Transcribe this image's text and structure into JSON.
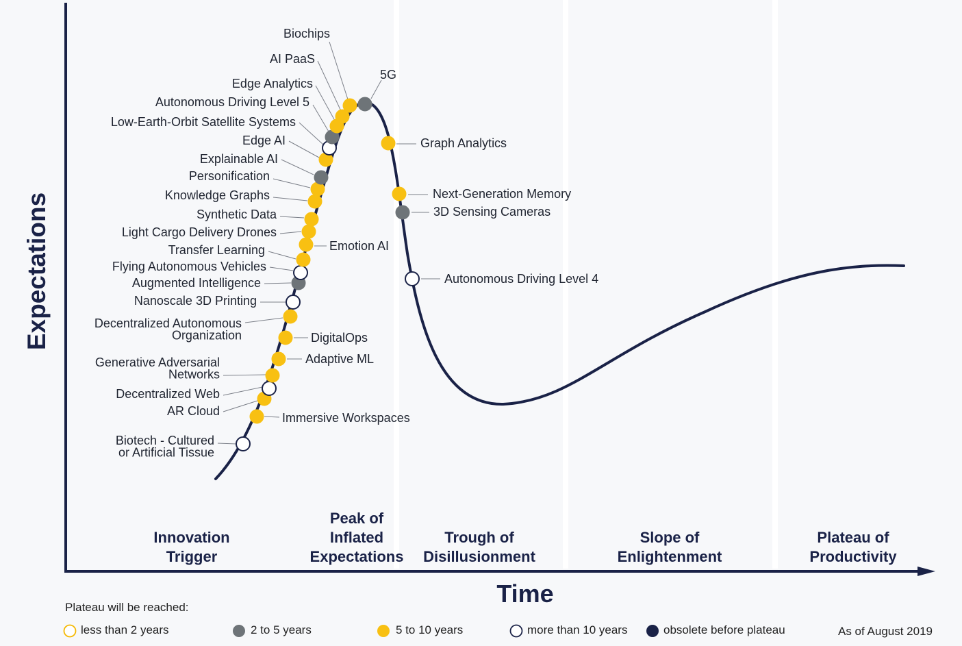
{
  "chart_data": {
    "type": "scatter",
    "title": "",
    "xlabel": "Time",
    "ylabel": "Expectations",
    "grid": false,
    "legend_placement": "bottom",
    "phases": [
      {
        "lines": [
          "Innovation",
          "Trigger"
        ]
      },
      {
        "lines": [
          "Peak of",
          "Inflated",
          "Expectations"
        ]
      },
      {
        "lines": [
          "Trough of",
          "Disillusionment"
        ]
      },
      {
        "lines": [
          "Slope of",
          "Enlightenment"
        ]
      },
      {
        "lines": [
          "Plateau of",
          "Productivity"
        ]
      }
    ],
    "categories": {
      "lt2": {
        "label": "less than 2 years",
        "fill": "#ffffff",
        "stroke": "#f5b800"
      },
      "2to5": {
        "label": "2 to 5 years",
        "fill": "#6e7478",
        "stroke": "#6e7478"
      },
      "5to10": {
        "label": "5 to 10 years",
        "fill": "#f8c012",
        "stroke": "#f8c012"
      },
      "gt10": {
        "label": "more than 10 years",
        "fill": "#ffffff",
        "stroke": "#1a2247"
      },
      "obs": {
        "label": "obsolete before plateau",
        "fill": "#1a2247",
        "stroke": "#1a2247"
      }
    },
    "legend_order": [
      "lt2",
      "2to5",
      "5to10",
      "gt10",
      "obs"
    ],
    "technologies": [
      {
        "name": "Biotech - Cultured or Artificial Tissue",
        "lines": [
          "Biotech - Cultured",
          "or Artificial Tissue"
        ],
        "category": "gt10",
        "phase": "Innovation Trigger"
      },
      {
        "name": "Immersive Workspaces",
        "lines": [
          "Immersive Workspaces"
        ],
        "category": "5to10",
        "phase": "Innovation Trigger"
      },
      {
        "name": "AR Cloud",
        "lines": [
          "AR Cloud"
        ],
        "category": "5to10",
        "phase": "Innovation Trigger"
      },
      {
        "name": "Decentralized Web",
        "lines": [
          "Decentralized Web"
        ],
        "category": "gt10",
        "phase": "Innovation Trigger"
      },
      {
        "name": "Generative Adversarial Networks",
        "lines": [
          "Generative Adversarial",
          "Networks"
        ],
        "category": "5to10",
        "phase": "Innovation Trigger"
      },
      {
        "name": "Adaptive ML",
        "lines": [
          "Adaptive ML"
        ],
        "category": "5to10",
        "phase": "Innovation Trigger"
      },
      {
        "name": "DigitalOps",
        "lines": [
          "DigitalOps"
        ],
        "category": "5to10",
        "phase": "Innovation Trigger"
      },
      {
        "name": "Decentralized Autonomous Organization",
        "lines": [
          "Decentralized Autonomous",
          "Organization"
        ],
        "category": "5to10",
        "phase": "Innovation Trigger"
      },
      {
        "name": "Nanoscale 3D Printing",
        "lines": [
          "Nanoscale 3D Printing"
        ],
        "category": "gt10",
        "phase": "Innovation Trigger"
      },
      {
        "name": "Augmented Intelligence",
        "lines": [
          "Augmented Intelligence"
        ],
        "category": "2to5",
        "phase": "Innovation Trigger"
      },
      {
        "name": "Flying Autonomous Vehicles",
        "lines": [
          "Flying Autonomous Vehicles"
        ],
        "category": "gt10",
        "phase": "Innovation Trigger"
      },
      {
        "name": "Transfer Learning",
        "lines": [
          "Transfer Learning"
        ],
        "category": "5to10",
        "phase": "Innovation Trigger"
      },
      {
        "name": "Emotion AI",
        "lines": [
          "Emotion AI"
        ],
        "category": "5to10",
        "phase": "Innovation Trigger"
      },
      {
        "name": "Light Cargo Delivery Drones",
        "lines": [
          "Light Cargo Delivery Drones"
        ],
        "category": "5to10",
        "phase": "Innovation Trigger"
      },
      {
        "name": "Synthetic Data",
        "lines": [
          "Synthetic Data"
        ],
        "category": "5to10",
        "phase": "Innovation Trigger"
      },
      {
        "name": "Knowledge Graphs",
        "lines": [
          "Knowledge Graphs"
        ],
        "category": "5to10",
        "phase": "Innovation Trigger"
      },
      {
        "name": "Personification",
        "lines": [
          "Personification"
        ],
        "category": "5to10",
        "phase": "Innovation Trigger"
      },
      {
        "name": "Explainable AI",
        "lines": [
          "Explainable AI"
        ],
        "category": "2to5",
        "phase": "Peak of Inflated Expectations"
      },
      {
        "name": "Edge AI",
        "lines": [
          "Edge AI"
        ],
        "category": "5to10",
        "phase": "Peak of Inflated Expectations"
      },
      {
        "name": "Low-Earth-Orbit Satellite Systems",
        "lines": [
          "Low-Earth-Orbit Satellite Systems"
        ],
        "category": "gt10",
        "phase": "Peak of Inflated Expectations"
      },
      {
        "name": "Autonomous Driving Level 5",
        "lines": [
          "Autonomous Driving Level 5"
        ],
        "category": "2to5",
        "phase": "Peak of Inflated Expectations"
      },
      {
        "name": "Edge Analytics",
        "lines": [
          "Edge Analytics"
        ],
        "category": "5to10",
        "phase": "Peak of Inflated Expectations"
      },
      {
        "name": "AI PaaS",
        "lines": [
          "AI PaaS"
        ],
        "category": "5to10",
        "phase": "Peak of Inflated Expectations"
      },
      {
        "name": "Biochips",
        "lines": [
          "Biochips"
        ],
        "category": "5to10",
        "phase": "Peak of Inflated Expectations"
      },
      {
        "name": "5G",
        "lines": [
          "5G"
        ],
        "category": "2to5",
        "phase": "Peak of Inflated Expectations"
      },
      {
        "name": "Graph Analytics",
        "lines": [
          "Graph Analytics"
        ],
        "category": "5to10",
        "phase": "Trough of Disillusionment"
      },
      {
        "name": "Next-Generation Memory",
        "lines": [
          "Next-Generation Memory"
        ],
        "category": "5to10",
        "phase": "Trough of Disillusionment"
      },
      {
        "name": "3D Sensing Cameras",
        "lines": [
          "3D Sensing Cameras"
        ],
        "category": "2to5",
        "phase": "Trough of Disillusionment"
      },
      {
        "name": "Autonomous Driving Level 4",
        "lines": [
          "Autonomous Driving Level 4"
        ],
        "category": "gt10",
        "phase": "Trough of Disillusionment"
      }
    ]
  },
  "legend": {
    "heading": "Plateau will be reached:",
    "date_note": "As of August 2019"
  }
}
